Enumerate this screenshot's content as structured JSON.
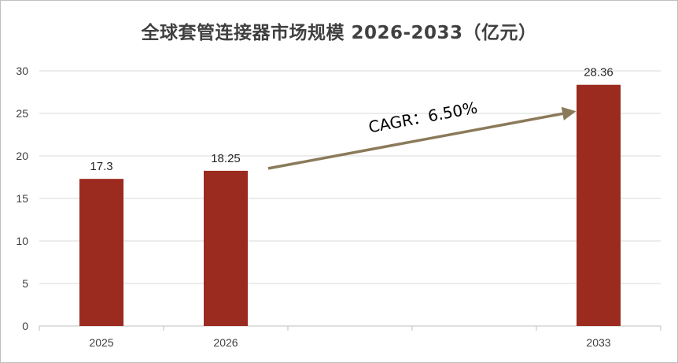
{
  "chart_data": {
    "type": "bar",
    "title": "全球套管连接器市场规模 2026-2033（亿元）",
    "xlabel": "",
    "ylabel": "",
    "categories": [
      "2025",
      "2026",
      "",
      "",
      "2033"
    ],
    "values": [
      17.3,
      18.25,
      null,
      null,
      28.36
    ],
    "data_labels": [
      "17.3",
      "18.25",
      "",
      "",
      "28.36"
    ],
    "ylim": [
      0,
      30
    ],
    "yticks": [
      0,
      5,
      10,
      15,
      20,
      25,
      30
    ],
    "grid": true,
    "legend": "none",
    "annotation": {
      "text": "CAGR：6.50%",
      "from_category": "2026",
      "to_category": "2033"
    },
    "colors": {
      "bar": "#9b2a1f",
      "arrow": "#8b7a5a",
      "grid": "#d9d9d9",
      "axis": "#bfbfbf"
    }
  }
}
